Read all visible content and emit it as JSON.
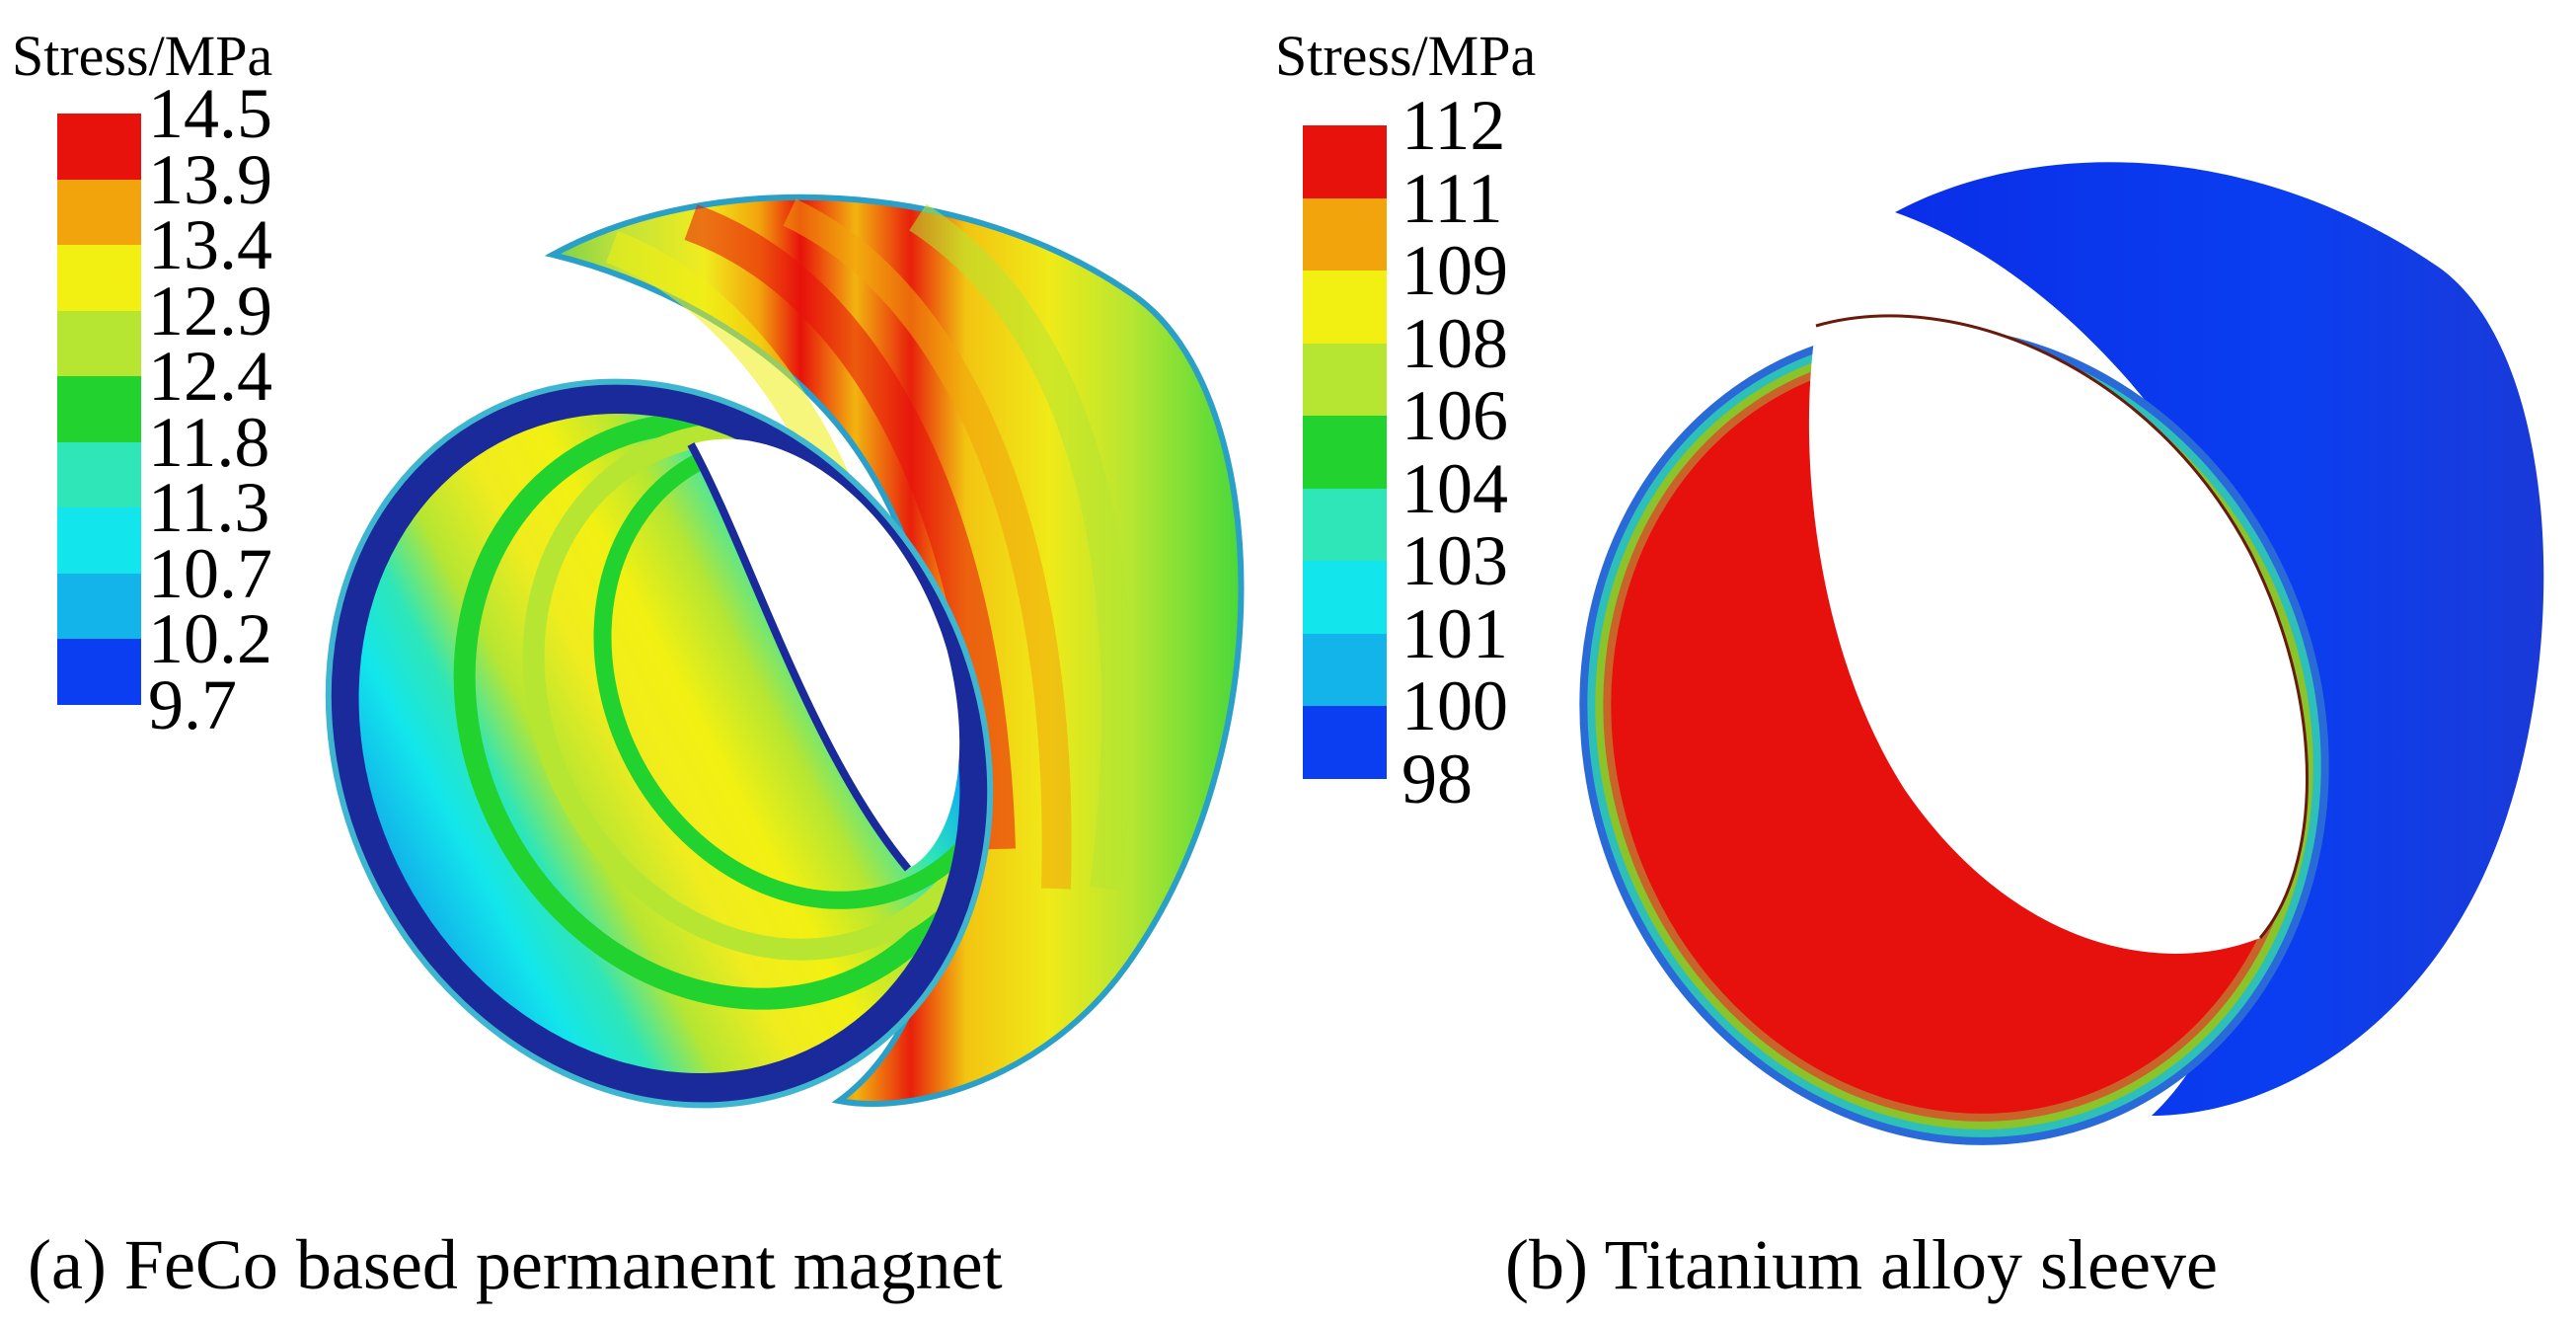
{
  "panel_a": {
    "colorbar_title": "Stress/MPa",
    "ticks": [
      "14.5",
      "13.9",
      "13.4",
      "12.9",
      "12.4",
      "11.8",
      "11.3",
      "10.7",
      "10.2",
      "9.7"
    ],
    "band_colors": [
      "#e8120c",
      "#f2a40c",
      "#f2f012",
      "#b6e632",
      "#22d22e",
      "#2ee6b8",
      "#12e6ec",
      "#12b4ea",
      "#0a3ef0"
    ],
    "caption": "(a) FeCo based permanent magnet"
  },
  "panel_b": {
    "colorbar_title": "Stress/MPa",
    "ticks": [
      "112",
      "111",
      "109",
      "108",
      "106",
      "104",
      "103",
      "101",
      "100",
      "98"
    ],
    "band_colors": [
      "#e8120c",
      "#f2a40c",
      "#f2f012",
      "#b6e632",
      "#22d22e",
      "#2ee6b8",
      "#12e6ec",
      "#12b4ea",
      "#0a3ef0"
    ],
    "caption": "(b) Titanium alloy sleeve"
  }
}
